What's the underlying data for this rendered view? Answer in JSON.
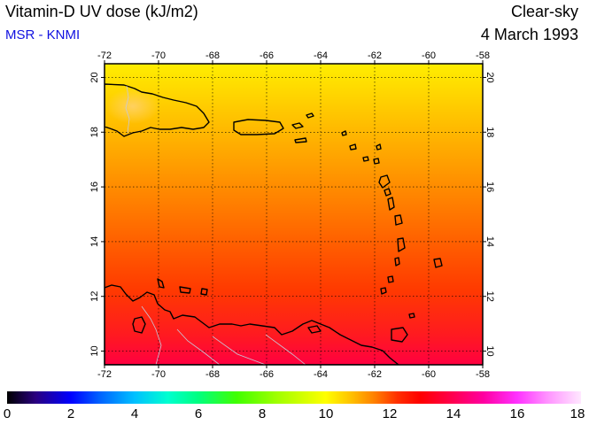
{
  "header": {
    "title": "Vitamin-D UV dose (kJ/m2)",
    "credit": "MSR - KNMI",
    "condition": "Clear-sky",
    "date": "4 March 1993"
  },
  "map": {
    "lon_range": [
      -72,
      -58
    ],
    "lat_range": [
      9.5,
      20.5
    ],
    "lon_ticks": [
      "-72",
      "-70",
      "-68",
      "-66",
      "-64",
      "-62",
      "-60",
      "-58"
    ],
    "lat_ticks": [
      "10",
      "12",
      "14",
      "16",
      "18",
      "20"
    ],
    "gridlines": "dotted",
    "field_gradient_colors": [
      "#ffee00",
      "#ffcc00",
      "#ff9a00",
      "#ff6a00",
      "#ff3a00",
      "#ff1a20",
      "#ff0040"
    ]
  },
  "colorbar": {
    "range": [
      0,
      18
    ],
    "labels": [
      "0",
      "2",
      "4",
      "6",
      "8",
      "10",
      "12",
      "14",
      "16",
      "18"
    ]
  }
}
